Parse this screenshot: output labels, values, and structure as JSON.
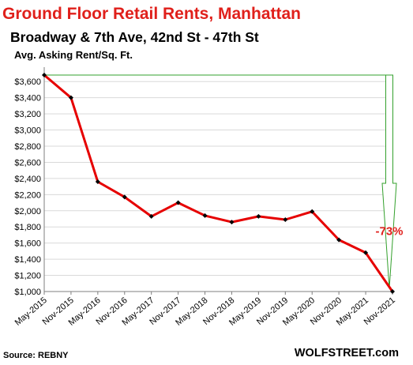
{
  "chart_data": {
    "type": "line",
    "title": "Ground  Floor Retail Rents, Manhattan",
    "subtitle": "Broadway & 7th Ave, 42nd St - 47th St",
    "ylabel": "Avg. Asking Rent/Sq. Ft.",
    "source": "Source: REBNY",
    "brand": "WOLFSTREET.com",
    "annotation": "-73%",
    "colors": {
      "title": "#e0201b",
      "line": "#e60000",
      "marker": "#000000",
      "arrow": "#33a02c",
      "grid": "#d9d9d9"
    },
    "ylim": [
      1000,
      3700
    ],
    "yticks": [
      1000,
      1200,
      1400,
      1600,
      1800,
      2000,
      2200,
      2400,
      2600,
      2800,
      3000,
      3200,
      3400,
      3600
    ],
    "ytick_labels": [
      "$1,000",
      "$1,200",
      "$1,400",
      "$1,600",
      "$1,800",
      "$2,000",
      "$2,200",
      "$2,400",
      "$2,600",
      "$2,800",
      "$3,000",
      "$3,200",
      "$3,400",
      "$3,600"
    ],
    "grid": "horizontal",
    "categories": [
      "May-2015",
      "Nov-2015",
      "May-2016",
      "Nov-2016",
      "May-2017",
      "Nov-2017",
      "May-2018",
      "Nov-2018",
      "May-2019",
      "Nov-2019",
      "May-2020",
      "Nov-2020",
      "May-2021",
      "Nov-2021"
    ],
    "series": [
      {
        "values": [
          3680,
          3400,
          2360,
          2170,
          1930,
          2100,
          1940,
          1860,
          1930,
          1890,
          1990,
          1640,
          1480,
          1000
        ]
      }
    ]
  }
}
